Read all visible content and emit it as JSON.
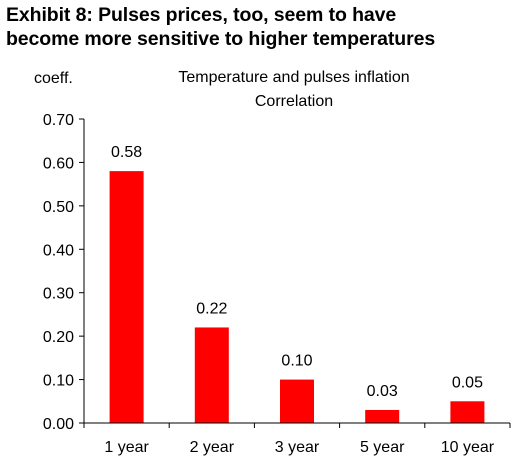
{
  "exhibit": {
    "title_line1": "Exhibit 8: Pulses prices, too, seem to have",
    "title_line2": "become more sensitive to higher temperatures"
  },
  "chart_data": {
    "type": "bar",
    "title": "Temperature and pulses inflation",
    "subtitle": "Correlation",
    "ylabel": "coeff.",
    "xlabel": "",
    "categories": [
      "1 year",
      "2 year",
      "3 year",
      "5 year",
      "10 year"
    ],
    "values": [
      0.58,
      0.22,
      0.1,
      0.03,
      0.05
    ],
    "value_labels": [
      "0.58",
      "0.22",
      "0.10",
      "0.03",
      "0.05"
    ],
    "ylim": [
      0,
      0.7
    ],
    "yticks": [
      0.0,
      0.1,
      0.2,
      0.3,
      0.4,
      0.5,
      0.6,
      0.7
    ],
    "ytick_labels": [
      "0.00",
      "0.10",
      "0.20",
      "0.30",
      "0.40",
      "0.50",
      "0.60",
      "0.70"
    ],
    "bar_color": "#ff0000",
    "grid": false,
    "legend": "none"
  }
}
